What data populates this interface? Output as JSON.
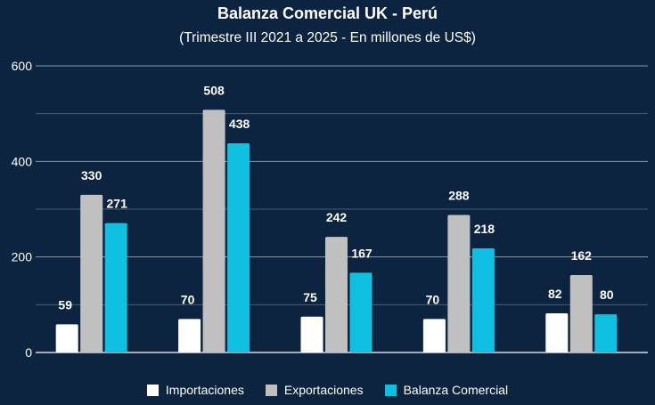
{
  "chart_data": {
    "type": "bar",
    "title": "Balanza Comercial UK - Perú",
    "subtitle": "(Trimestre III 2021 a 2025 - En millones de US$)",
    "categories": [
      "",
      "",
      "",
      "",
      ""
    ],
    "series": [
      {
        "name": "Importaciones",
        "color": "#ffffff",
        "values": [
          59,
          70,
          75,
          70,
          82
        ]
      },
      {
        "name": "Exportaciones",
        "color": "#c0c0c0",
        "values": [
          330,
          508,
          242,
          288,
          162
        ]
      },
      {
        "name": "Balanza Comercial",
        "color": "#0fc0e0",
        "values": [
          271,
          438,
          167,
          218,
          80
        ]
      }
    ],
    "ylim": [
      0,
      600
    ],
    "yticks": [
      0,
      200,
      400,
      600
    ],
    "grid": true,
    "legend_position": "bottom",
    "xlabel": "",
    "ylabel": ""
  }
}
